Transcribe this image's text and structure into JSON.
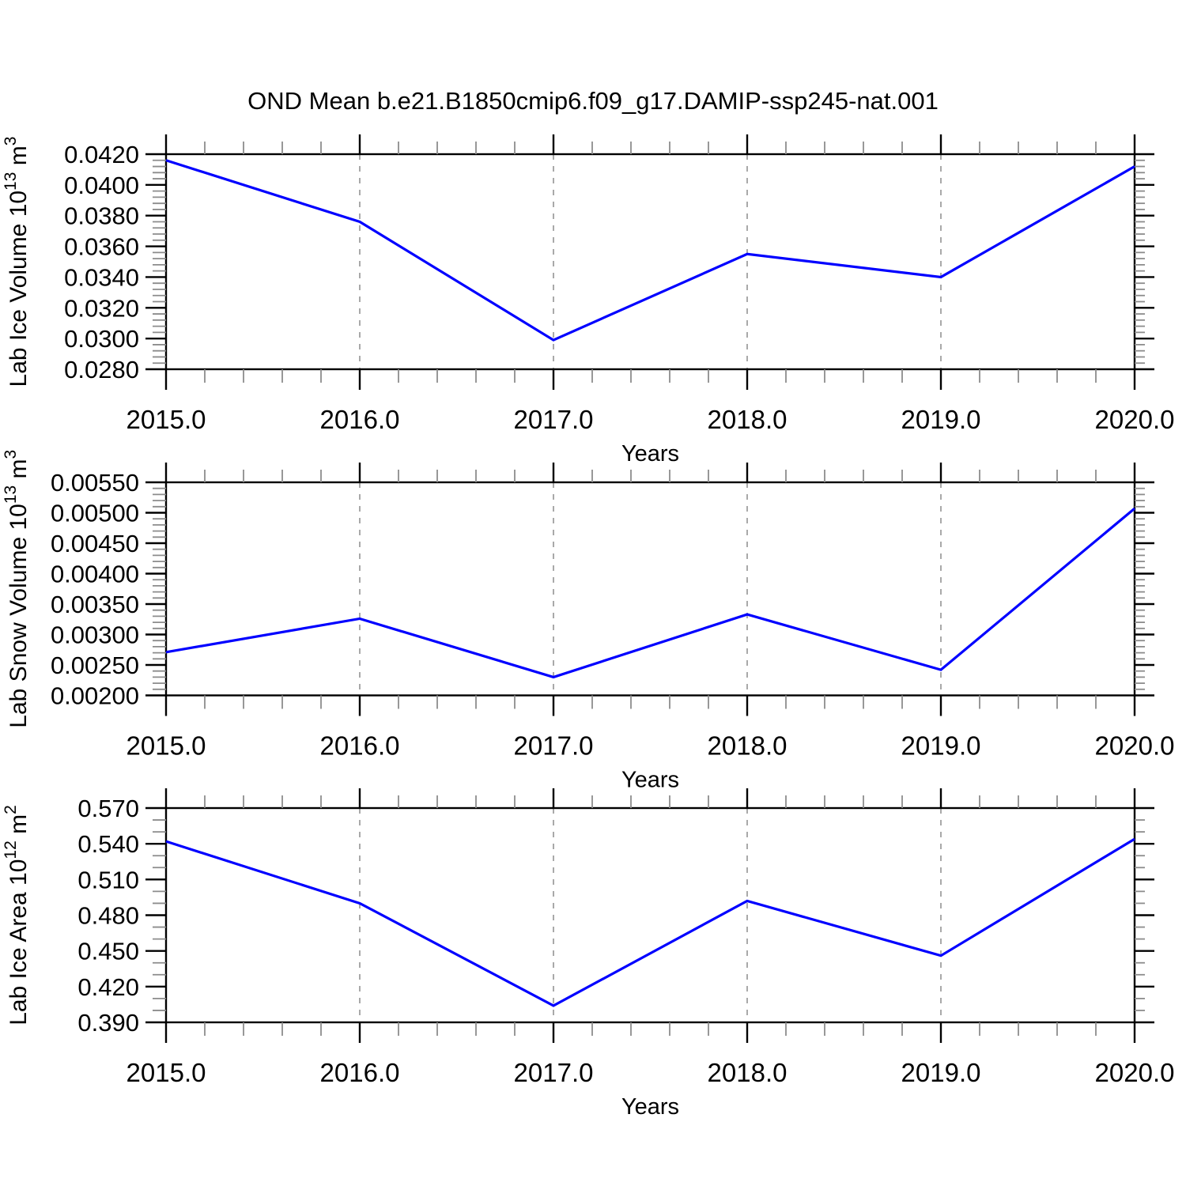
{
  "title": "OND Mean b.e21.B1850cmip6.f09_g17.DAMIP-ssp245-nat.001",
  "line_color": "#0000ff",
  "chart_data": [
    {
      "type": "line",
      "name": "Lab Ice Volume",
      "x": [
        2015.0,
        2016.0,
        2017.0,
        2018.0,
        2019.0,
        2020.0
      ],
      "values": [
        0.0416,
        0.0376,
        0.0299,
        0.0355,
        0.034,
        0.0412
      ],
      "xlabel": "Years",
      "ylabel": "Lab Ice Volume 10^{13} m^{3}",
      "xlim": [
        2015.0,
        2020.0
      ],
      "ylim": [
        0.028,
        0.042
      ],
      "x_tick_labels": [
        "2015.0",
        "2016.0",
        "2017.0",
        "2018.0",
        "2019.0",
        "2020.0"
      ],
      "y_tick_labels": [
        "0.0420",
        "0.0400",
        "0.0380",
        "0.0360",
        "0.0340",
        "0.0320",
        "0.0300",
        "0.0280"
      ],
      "x_minor_per_interval": 4,
      "y_minor_per_interval": 4,
      "grid": "vertical-dashed-at-interior-years",
      "legend": "none"
    },
    {
      "type": "line",
      "name": "Lab Snow Volume",
      "x": [
        2015.0,
        2016.0,
        2017.0,
        2018.0,
        2019.0,
        2020.0
      ],
      "values": [
        0.00271,
        0.00326,
        0.0023,
        0.00333,
        0.00242,
        0.00507
      ],
      "xlabel": "Years",
      "ylabel": "Lab Snow Volume 10^{13} m^{3}",
      "xlim": [
        2015.0,
        2020.0
      ],
      "ylim": [
        0.002,
        0.0055
      ],
      "x_tick_labels": [
        "2015.0",
        "2016.0",
        "2017.0",
        "2018.0",
        "2019.0",
        "2020.0"
      ],
      "y_tick_labels": [
        "0.00550",
        "0.00500",
        "0.00450",
        "0.00400",
        "0.00350",
        "0.00300",
        "0.00250",
        "0.00200"
      ],
      "x_minor_per_interval": 4,
      "y_minor_per_interval": 4,
      "grid": "vertical-dashed-at-interior-years",
      "legend": "none"
    },
    {
      "type": "line",
      "name": "Lab Ice Area",
      "x": [
        2015.0,
        2016.0,
        2017.0,
        2018.0,
        2019.0,
        2020.0
      ],
      "values": [
        0.542,
        0.49,
        0.404,
        0.492,
        0.446,
        0.544
      ],
      "xlabel": "Years",
      "ylabel": "Lab Ice Area 10^{12} m^{2}",
      "xlim": [
        2015.0,
        2020.0
      ],
      "ylim": [
        0.39,
        0.57
      ],
      "x_tick_labels": [
        "2015.0",
        "2016.0",
        "2017.0",
        "2018.0",
        "2019.0",
        "2020.0"
      ],
      "y_tick_labels": [
        "0.570",
        "0.540",
        "0.510",
        "0.480",
        "0.450",
        "0.420",
        "0.390"
      ],
      "x_minor_per_interval": 4,
      "y_minor_per_interval": 2,
      "grid": "vertical-dashed-at-interior-years",
      "legend": "none"
    }
  ]
}
